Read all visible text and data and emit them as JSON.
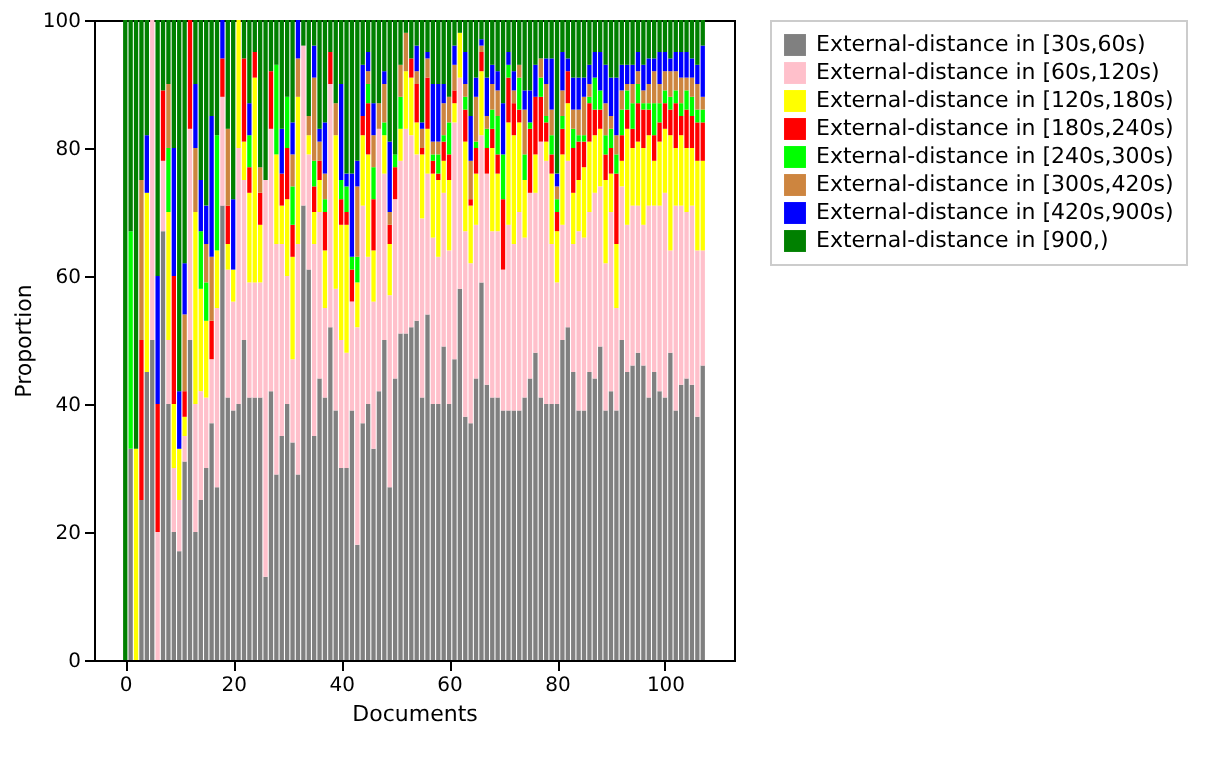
{
  "chart_data": {
    "type": "bar",
    "stacked": true,
    "xlabel": "Documents",
    "ylabel": "Proportion",
    "x": [
      0,
      1,
      2,
      3,
      4,
      5,
      6,
      7,
      8,
      9,
      10,
      11,
      12,
      13,
      14,
      15,
      16,
      17,
      18,
      19,
      20,
      21,
      22,
      23,
      24,
      25,
      26,
      27,
      28,
      29,
      30,
      31,
      32,
      33,
      34,
      35,
      36,
      37,
      38,
      39,
      40,
      41,
      42,
      43,
      44,
      45,
      46,
      47,
      48,
      49,
      50,
      51,
      52,
      53,
      54,
      55,
      56,
      57,
      58,
      59,
      60,
      61,
      62,
      63,
      64,
      65,
      66,
      67,
      68,
      69,
      70,
      71,
      72,
      73,
      74,
      75,
      76,
      77,
      78,
      79,
      80,
      81,
      82,
      83,
      84,
      85,
      86,
      87,
      88,
      89,
      90,
      91,
      92,
      93,
      94,
      95,
      96,
      97,
      98,
      99,
      100,
      101,
      102,
      103,
      104,
      105,
      106,
      107
    ],
    "xlim": [
      -5.79,
      112.79
    ],
    "xticks": [
      0,
      20,
      40,
      60,
      80,
      100
    ],
    "ylim": [
      0,
      100
    ],
    "yticks": [
      0,
      20,
      40,
      60,
      80,
      100
    ],
    "grid": false,
    "legend": "right",
    "series": [
      {
        "name": "External-distance in [30s,60s)",
        "color": "#808080",
        "values": [
          0,
          33,
          0,
          25,
          45,
          50,
          0,
          67,
          40,
          20,
          17,
          31,
          50,
          20,
          25,
          30,
          37,
          27,
          71,
          41,
          39,
          40,
          50,
          41,
          41,
          41,
          13,
          42,
          29,
          35,
          40,
          34,
          29,
          71,
          61,
          35,
          44,
          41,
          52,
          39,
          30,
          30,
          39,
          18,
          37,
          40,
          33,
          42,
          50,
          27,
          44,
          51,
          51,
          52,
          53,
          41,
          54,
          40,
          40,
          49,
          40,
          47,
          58,
          38,
          37,
          44,
          59,
          43,
          41,
          41,
          39,
          39,
          39,
          39,
          41,
          44,
          48,
          41,
          40,
          40,
          40,
          50,
          52,
          45,
          39,
          39,
          45,
          44,
          49,
          39,
          42,
          39,
          50,
          45,
          46,
          48,
          46,
          41,
          45,
          42,
          41,
          48,
          39,
          43,
          44,
          43,
          38,
          46
        ]
      },
      {
        "name": "External-distance in [60s,120s)",
        "color": "#ffc0cb",
        "values": [
          0,
          0,
          0,
          0,
          0,
          50,
          20,
          11,
          10,
          10,
          8,
          4,
          33,
          20,
          17,
          11,
          10,
          28,
          17,
          20,
          17,
          40,
          25,
          18,
          18,
          18,
          62,
          41,
          36,
          30,
          20,
          13,
          36,
          25,
          18,
          30,
          26,
          14,
          38,
          19,
          20,
          18,
          17,
          34,
          34,
          23,
          23,
          41,
          26,
          30,
          28,
          27,
          32,
          30,
          26,
          28,
          22,
          26,
          23,
          24,
          24,
          37,
          33,
          29,
          25,
          24,
          23,
          33,
          26,
          26,
          22,
          29,
          26,
          31,
          25,
          29,
          25,
          40,
          38,
          25,
          19,
          18,
          26,
          20,
          28,
          27,
          25,
          29,
          25,
          23,
          28,
          16,
          24,
          23,
          25,
          23,
          22,
          30,
          26,
          29,
          32,
          16,
          32,
          28,
          26,
          28,
          26,
          18
        ]
      },
      {
        "name": "External-distance in [120s,180s)",
        "color": "#ffff00",
        "values": [
          0,
          0,
          33,
          0,
          28,
          0,
          0,
          0,
          20,
          10,
          8,
          3,
          0,
          30,
          16,
          12,
          0,
          9,
          0,
          4,
          5,
          20,
          6,
          14,
          32,
          9,
          0,
          0,
          14,
          6,
          12,
          16,
          23,
          0,
          3,
          5,
          5,
          9,
          0,
          24,
          18,
          20,
          0,
          7,
          11,
          16,
          8,
          0,
          6,
          8,
          0,
          5,
          9,
          9,
          5,
          10,
          7,
          10,
          12,
          5,
          11,
          3,
          7,
          14,
          9,
          8,
          10,
          0,
          13,
          9,
          0,
          16,
          17,
          14,
          9,
          0,
          6,
          0,
          3,
          11,
          8,
          11,
          9,
          8,
          8,
          11,
          11,
          9,
          9,
          13,
          6,
          10,
          4,
          15,
          9,
          10,
          12,
          11,
          7,
          10,
          10,
          18,
          9,
          11,
          10,
          9,
          14,
          14
        ]
      },
      {
        "name": "External-distance in [180s,240s)",
        "color": "#ff0000",
        "values": [
          0,
          0,
          0,
          25,
          0,
          0,
          20,
          11,
          0,
          20,
          0,
          4,
          17,
          0,
          0,
          0,
          6,
          0,
          6,
          6,
          0,
          0,
          13,
          4,
          4,
          5,
          0,
          9,
          0,
          5,
          8,
          5,
          0,
          0,
          0,
          4,
          3,
          6,
          5,
          0,
          4,
          2,
          5,
          0,
          3,
          8,
          8,
          0,
          0,
          3,
          5,
          0,
          0,
          3,
          6,
          1,
          8,
          2,
          1,
          3,
          4,
          2,
          0,
          5,
          1,
          4,
          3,
          4,
          3,
          3,
          11,
          7,
          5,
          2,
          0,
          10,
          9,
          7,
          3,
          3,
          3,
          4,
          5,
          7,
          6,
          4,
          6,
          4,
          3,
          4,
          4,
          11,
          4,
          3,
          3,
          6,
          6,
          4,
          4,
          3,
          4,
          4,
          7,
          3,
          6,
          5,
          6,
          6
        ]
      },
      {
        "name": "External-distance in [240s,300s)",
        "color": "#00ff00",
        "values": [
          0,
          34,
          0,
          0,
          0,
          0,
          0,
          0,
          10,
          0,
          0,
          0,
          0,
          0,
          9,
          6,
          0,
          18,
          0,
          0,
          0,
          0,
          0,
          5,
          0,
          0,
          0,
          0,
          14,
          0,
          8,
          6,
          0,
          0,
          0,
          4,
          0,
          2,
          0,
          0,
          3,
          4,
          2,
          4,
          0,
          3,
          5,
          0,
          2,
          0,
          2,
          5,
          0,
          0,
          0,
          0,
          0,
          1,
          3,
          1,
          5,
          0,
          0,
          2,
          0,
          1,
          0,
          3,
          3,
          6,
          7,
          2,
          0,
          5,
          4,
          1,
          0,
          3,
          1,
          3,
          2,
          2,
          0,
          3,
          1,
          1,
          1,
          5,
          3,
          3,
          3,
          3,
          4,
          3,
          4,
          3,
          1,
          1,
          5,
          3,
          2,
          2,
          2,
          2,
          3,
          3,
          2,
          2
        ]
      },
      {
        "name": "External-distance in [300s,420s)",
        "color": "#cd853f",
        "values": [
          0,
          0,
          0,
          25,
          0,
          0,
          0,
          0,
          10,
          0,
          0,
          12,
          0,
          10,
          0,
          6,
          10,
          0,
          0,
          12,
          0,
          0,
          0,
          0,
          0,
          4,
          0,
          0,
          0,
          0,
          0,
          5,
          6,
          0,
          3,
          13,
          3,
          4,
          0,
          5,
          0,
          0,
          0,
          11,
          0,
          2,
          5,
          4,
          6,
          2,
          0,
          5,
          6,
          0,
          2,
          3,
          3,
          2,
          2,
          5,
          4,
          4,
          0,
          2,
          6,
          7,
          1,
          2,
          4,
          4,
          0,
          0,
          2,
          2,
          7,
          0,
          0,
          3,
          5,
          4,
          2,
          4,
          0,
          3,
          4,
          6,
          2,
          0,
          0,
          5,
          2,
          3,
          3,
          1,
          3,
          2,
          2,
          3,
          5,
          3,
          3,
          4,
          3,
          4,
          2,
          3,
          4,
          2
        ]
      },
      {
        "name": "External-distance in [420s,900s)",
        "color": "#0000ff",
        "values": [
          0,
          0,
          0,
          0,
          9,
          0,
          20,
          0,
          0,
          20,
          9,
          8,
          0,
          10,
          8,
          6,
          22,
          0,
          6,
          0,
          11,
          0,
          0,
          5,
          0,
          0,
          0,
          0,
          0,
          7,
          0,
          5,
          6,
          0,
          0,
          5,
          2,
          8,
          0,
          0,
          15,
          2,
          13,
          4,
          8,
          3,
          5,
          0,
          2,
          11,
          0,
          0,
          0,
          0,
          4,
          1,
          1,
          9,
          9,
          3,
          0,
          3,
          0,
          5,
          7,
          3,
          1,
          6,
          3,
          3,
          8,
          2,
          3,
          0,
          3,
          5,
          5,
          0,
          4,
          8,
          2,
          6,
          2,
          5,
          5,
          3,
          3,
          4,
          6,
          6,
          6,
          9,
          4,
          3,
          3,
          3,
          4,
          4,
          2,
          5,
          3,
          2,
          3,
          4,
          4,
          3,
          3,
          8
        ]
      },
      {
        "name": "External-distance in [900,)",
        "color": "#008000",
        "values": [
          100,
          33,
          67,
          25,
          18,
          0,
          40,
          11,
          10,
          20,
          58,
          38,
          0,
          10,
          25,
          29,
          15,
          18,
          0,
          17,
          28,
          0,
          6,
          13,
          5,
          23,
          25,
          8,
          7,
          17,
          12,
          16,
          0,
          4,
          15,
          4,
          17,
          16,
          5,
          13,
          10,
          24,
          24,
          22,
          7,
          5,
          13,
          13,
          8,
          19,
          21,
          7,
          2,
          6,
          4,
          16,
          5,
          10,
          10,
          10,
          12,
          4,
          2,
          5,
          15,
          9,
          3,
          9,
          7,
          8,
          13,
          5,
          8,
          7,
          11,
          11,
          7,
          6,
          6,
          6,
          24,
          5,
          6,
          9,
          9,
          9,
          7,
          5,
          5,
          7,
          9,
          9,
          7,
          7,
          7,
          5,
          7,
          6,
          6,
          5,
          5,
          6,
          5,
          5,
          5,
          6,
          7,
          4
        ]
      }
    ]
  }
}
